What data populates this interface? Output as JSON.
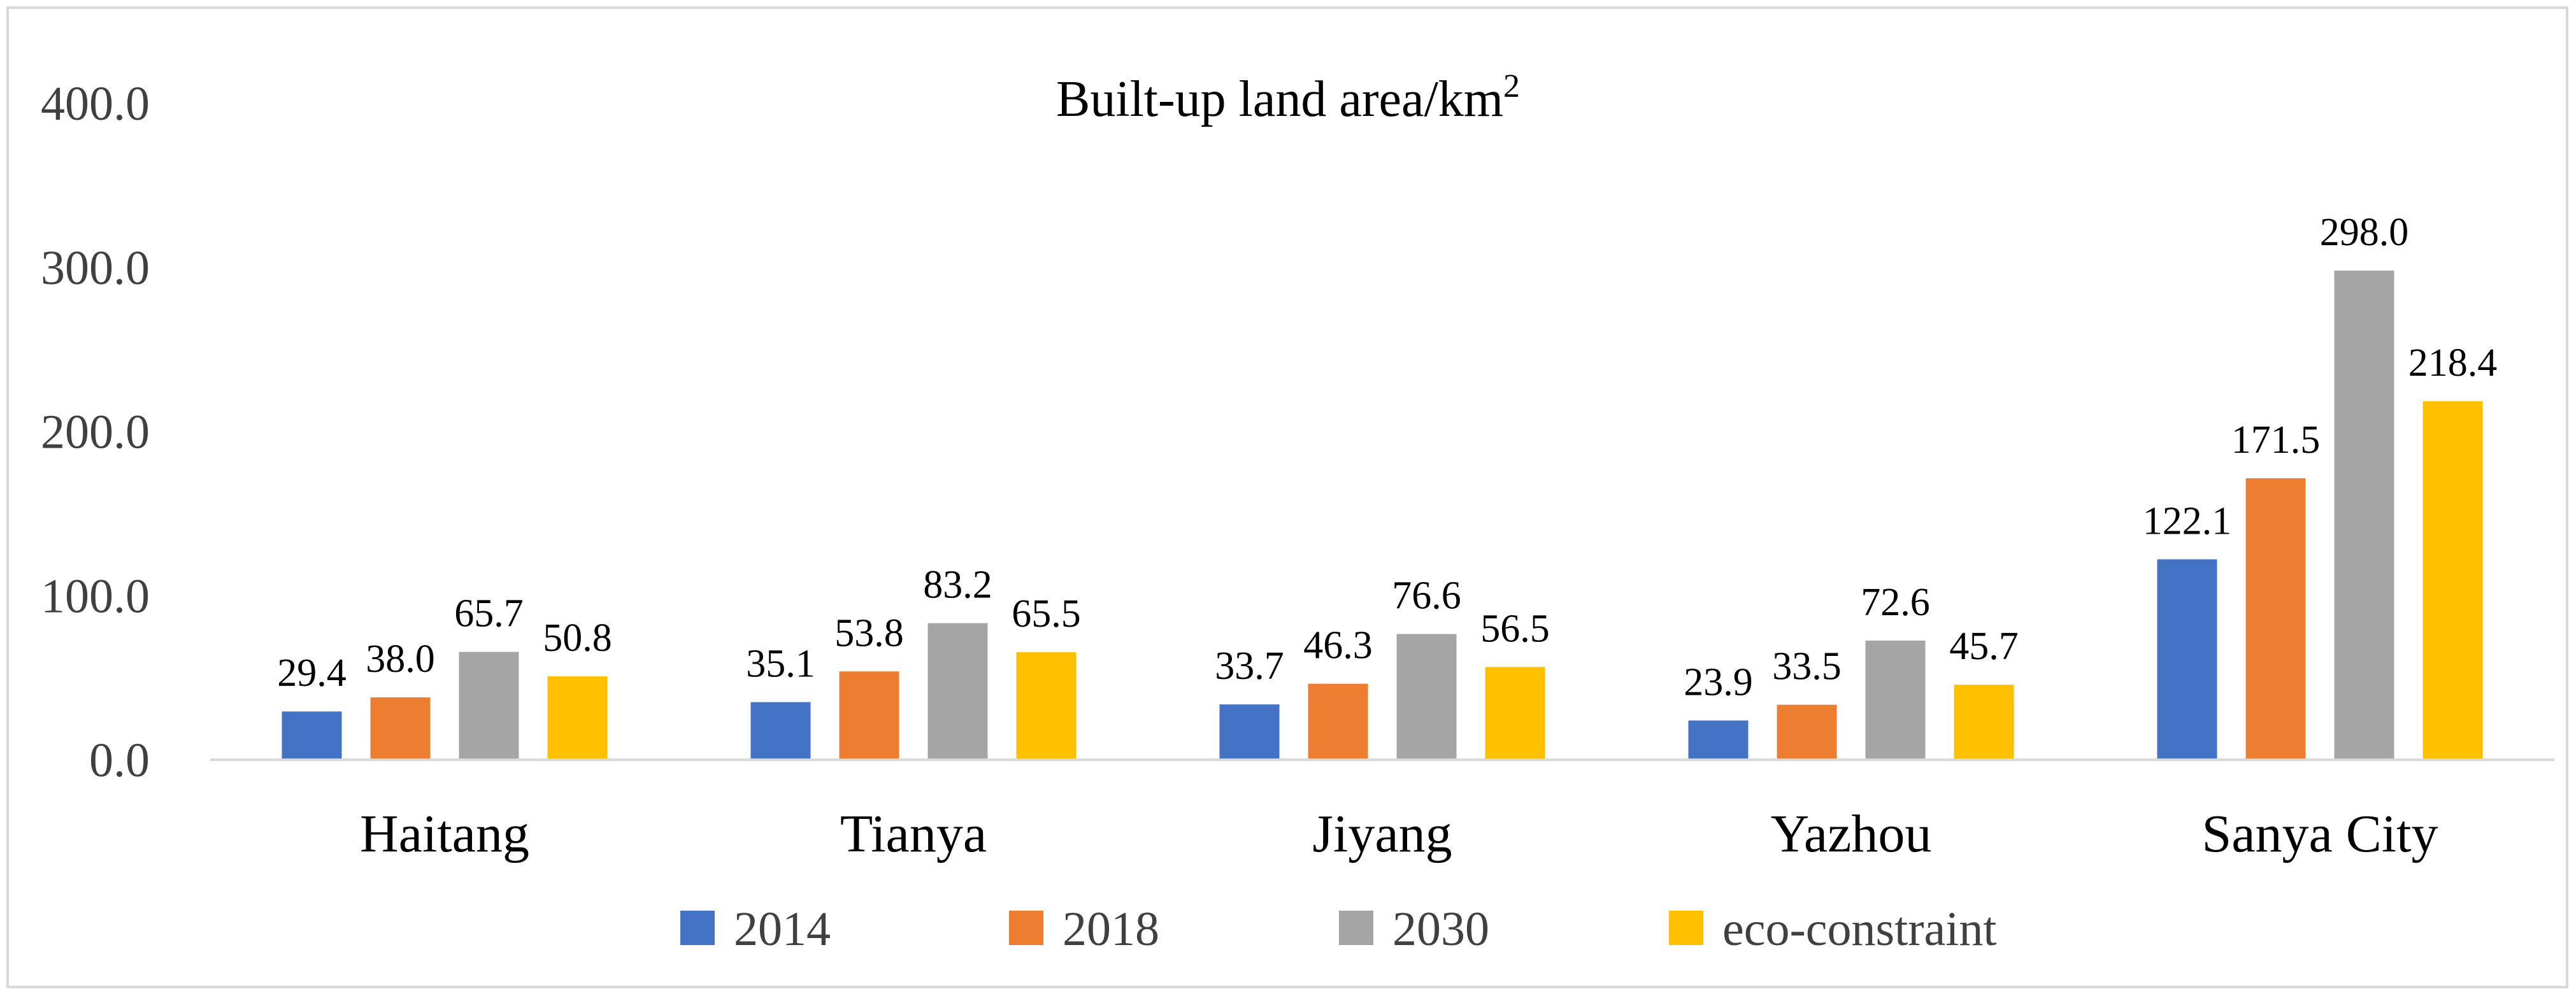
{
  "chart_data": {
    "type": "bar",
    "title": "Built-up land area/km",
    "title_superscript": "2",
    "xlabel": "",
    "ylabel": "",
    "ylim": [
      0,
      400
    ],
    "yticks": [
      0,
      100,
      200,
      300,
      400
    ],
    "ytick_labels": [
      "0.0",
      "100.0",
      "200.0",
      "300.0",
      "400.0"
    ],
    "grid": false,
    "legend_position": "bottom",
    "categories": [
      "Haitang",
      "Tianya",
      "Jiyang",
      "Yazhou",
      "Sanya City"
    ],
    "series": [
      {
        "name": "2014",
        "color": "#4472C4",
        "values": [
          29.4,
          35.1,
          33.7,
          23.9,
          122.1
        ],
        "labels": [
          "29.4",
          "35.1",
          "33.7",
          "23.9",
          "122.1"
        ]
      },
      {
        "name": "2018",
        "color": "#ED7D31",
        "values": [
          38.0,
          53.8,
          46.3,
          33.5,
          171.5
        ],
        "labels": [
          "38.0",
          "53.8",
          "46.3",
          "33.5",
          "171.5"
        ]
      },
      {
        "name": "2030",
        "color": "#A5A5A5",
        "values": [
          65.7,
          83.2,
          76.6,
          72.6,
          298.0
        ],
        "labels": [
          "65.7",
          "83.2",
          "76.6",
          "72.6",
          "298.0"
        ]
      },
      {
        "name": "eco-constraint",
        "color": "#FFC000",
        "values": [
          50.8,
          65.5,
          56.5,
          45.7,
          218.4
        ],
        "labels": [
          "50.8",
          "65.5",
          "56.5",
          "45.7",
          "218.4"
        ]
      }
    ]
  }
}
